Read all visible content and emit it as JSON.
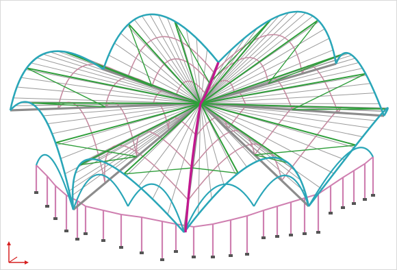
{
  "view": {
    "background": "#ffffff",
    "colors": {
      "arch": "#2aa6b8",
      "rib": "#c58aa0",
      "purlin": "#9a9a9a",
      "brace": "#2e9e3a",
      "central_rib": "#c2188f",
      "column": "#cf7fb0",
      "footing": "#555555"
    }
  },
  "axis_triad": {
    "x_color": "#d62020",
    "y_color": "#d62020",
    "z_color": "#d62020"
  }
}
